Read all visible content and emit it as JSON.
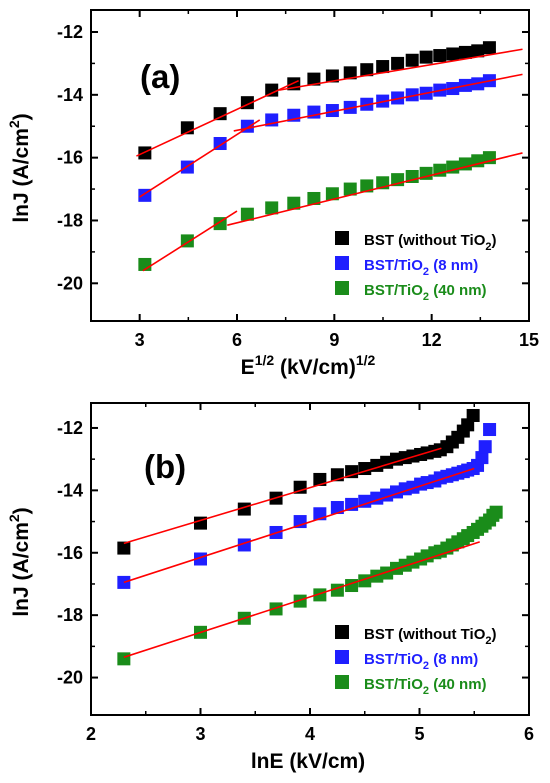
{
  "chart_data": [
    {
      "panel_label": "(a)",
      "type": "scatter",
      "xlabel": "E",
      "xlabel_sup": "1/2",
      "xlabel_rest": " (kV/cm)",
      "xlabel_sup2": "1/2",
      "ylabel": "lnJ (A/cm",
      "ylabel_sup": "2",
      "ylabel_end": ")",
      "xlim": [
        1.5,
        15
      ],
      "ylim": [
        -21.2,
        -11.3
      ],
      "xticks": [
        3,
        6,
        9,
        12,
        15
      ],
      "yticks": [
        -20,
        -18,
        -16,
        -14,
        -12
      ],
      "legend_position": "bottom-right",
      "series": [
        {
          "name": "BST (without TiO2)",
          "legend_parts": [
            "BST (without TiO",
            "2",
            ")"
          ],
          "color": "#000000",
          "x": [
            3.16,
            4.47,
            5.48,
            6.32,
            7.07,
            7.75,
            8.37,
            8.94,
            9.49,
            10.0,
            10.49,
            10.95,
            11.4,
            11.83,
            12.25,
            12.65,
            13.04,
            13.42,
            13.78
          ],
          "y": [
            -15.85,
            -15.05,
            -14.6,
            -14.25,
            -13.85,
            -13.65,
            -13.5,
            -13.4,
            -13.3,
            -13.2,
            -13.1,
            -13.0,
            -12.9,
            -12.8,
            -12.75,
            -12.7,
            -12.65,
            -12.6,
            -12.5
          ],
          "fit_lines": [
            {
              "x": [
                2.9,
                7.9
              ],
              "y": [
                -15.95,
                -13.55
              ]
            },
            {
              "x": [
                7.3,
                14.8
              ],
              "y": [
                -13.85,
                -12.55
              ]
            }
          ]
        },
        {
          "name": "BST/TiO2 (8 nm)",
          "legend_parts": [
            "BST/TiO",
            "2",
            " (8 nm)"
          ],
          "color": "#1f1fff",
          "x": [
            3.16,
            4.47,
            5.48,
            6.32,
            7.07,
            7.75,
            8.37,
            8.94,
            9.49,
            10.0,
            10.49,
            10.95,
            11.4,
            11.83,
            12.25,
            12.65,
            13.04,
            13.42,
            13.78
          ],
          "y": [
            -17.2,
            -16.3,
            -15.55,
            -15.0,
            -14.8,
            -14.65,
            -14.55,
            -14.5,
            -14.4,
            -14.3,
            -14.2,
            -14.1,
            -14.0,
            -13.95,
            -13.85,
            -13.8,
            -13.7,
            -13.65,
            -13.55
          ],
          "fit_lines": [
            {
              "x": [
                3.0,
                6.7
              ],
              "y": [
                -17.25,
                -14.8
              ]
            },
            {
              "x": [
                5.9,
                14.8
              ],
              "y": [
                -15.15,
                -13.35
              ]
            }
          ]
        },
        {
          "name": "BST/TiO2 (40 nm)",
          "legend_parts": [
            "BST/TiO",
            "2",
            " (40 nm)"
          ],
          "color": "#1a8c1a",
          "x": [
            3.16,
            4.47,
            5.48,
            6.32,
            7.07,
            7.75,
            8.37,
            8.94,
            9.49,
            10.0,
            10.49,
            10.95,
            11.4,
            11.83,
            12.25,
            12.65,
            13.04,
            13.42,
            13.78
          ],
          "y": [
            -19.4,
            -18.65,
            -18.1,
            -17.8,
            -17.6,
            -17.45,
            -17.3,
            -17.15,
            -17.0,
            -16.9,
            -16.8,
            -16.7,
            -16.6,
            -16.5,
            -16.4,
            -16.3,
            -16.2,
            -16.1,
            -16.0
          ],
          "fit_lines": [
            {
              "x": [
                3.1,
                6.0
              ],
              "y": [
                -19.6,
                -17.7
              ]
            },
            {
              "x": [
                5.7,
                14.8
              ],
              "y": [
                -18.15,
                -15.85
              ]
            }
          ]
        }
      ]
    },
    {
      "panel_label": "(b)",
      "type": "scatter",
      "xlabel": "lnE (kV/cm)",
      "ylabel": "lnJ (A/cm",
      "ylabel_sup": "2",
      "ylabel_end": ")",
      "xlim": [
        2,
        6
      ],
      "ylim": [
        -21.2,
        -11.2
      ],
      "xticks": [
        2,
        3,
        4,
        5,
        6
      ],
      "yticks": [
        -20,
        -18,
        -16,
        -14,
        -12
      ],
      "legend_position": "bottom-right",
      "series": [
        {
          "name": "BST (without TiO2)",
          "legend_parts": [
            "BST (without TiO",
            "2",
            ")"
          ],
          "color": "#000000",
          "x": [
            2.3,
            3.0,
            3.4,
            3.69,
            3.91,
            4.09,
            4.25,
            4.38,
            4.5,
            4.61,
            4.7,
            4.79,
            4.87,
            4.94,
            5.01,
            5.07,
            5.14,
            5.19,
            5.25,
            5.3,
            5.35,
            5.4,
            5.44,
            5.49
          ],
          "y": [
            -15.85,
            -15.05,
            -14.6,
            -14.25,
            -13.9,
            -13.65,
            -13.5,
            -13.4,
            -13.3,
            -13.2,
            -13.1,
            -13.0,
            -12.95,
            -12.9,
            -12.85,
            -12.8,
            -12.75,
            -12.7,
            -12.6,
            -12.45,
            -12.3,
            -12.1,
            -11.9,
            -11.6
          ],
          "fit_lines": [
            {
              "x": [
                2.3,
                5.2
              ],
              "y": [
                -15.7,
                -12.65
              ]
            }
          ]
        },
        {
          "name": "BST/TiO2 (8 nm)",
          "legend_parts": [
            "BST/TiO",
            "2",
            " (8 nm)"
          ],
          "color": "#1f1fff",
          "x": [
            2.3,
            3.0,
            3.4,
            3.69,
            3.91,
            4.09,
            4.25,
            4.38,
            4.5,
            4.61,
            4.7,
            4.79,
            4.87,
            4.94,
            5.01,
            5.07,
            5.14,
            5.19,
            5.25,
            5.3,
            5.35,
            5.4,
            5.44,
            5.49,
            5.53,
            5.57,
            5.6,
            5.64
          ],
          "y": [
            -16.95,
            -16.2,
            -15.75,
            -15.35,
            -15.0,
            -14.75,
            -14.55,
            -14.45,
            -14.35,
            -14.25,
            -14.15,
            -14.05,
            -13.95,
            -13.9,
            -13.8,
            -13.75,
            -13.7,
            -13.6,
            -13.55,
            -13.5,
            -13.45,
            -13.4,
            -13.35,
            -13.3,
            -13.2,
            -12.95,
            -12.6,
            -12.05
          ],
          "fit_lines": [
            {
              "x": [
                2.3,
                5.5
              ],
              "y": [
                -16.95,
                -13.3
              ]
            }
          ]
        },
        {
          "name": "BST/TiO2 (40 nm)",
          "legend_parts": [
            "BST/TiO",
            "2",
            " (40 nm)"
          ],
          "color": "#1a8c1a",
          "x": [
            2.3,
            3.0,
            3.4,
            3.69,
            3.91,
            4.09,
            4.25,
            4.38,
            4.5,
            4.61,
            4.7,
            4.79,
            4.87,
            4.94,
            5.01,
            5.07,
            5.14,
            5.19,
            5.25,
            5.3,
            5.35,
            5.4,
            5.44,
            5.49,
            5.53,
            5.57,
            5.6,
            5.64,
            5.67,
            5.7
          ],
          "y": [
            -19.4,
            -18.55,
            -18.1,
            -17.8,
            -17.55,
            -17.35,
            -17.2,
            -17.05,
            -16.9,
            -16.75,
            -16.65,
            -16.5,
            -16.4,
            -16.3,
            -16.2,
            -16.1,
            -16.0,
            -15.95,
            -15.85,
            -15.75,
            -15.65,
            -15.55,
            -15.45,
            -15.35,
            -15.25,
            -15.15,
            -15.05,
            -14.95,
            -14.8,
            -14.7
          ],
          "fit_lines": [
            {
              "x": [
                2.3,
                5.55
              ],
              "y": [
                -19.35,
                -15.65
              ]
            }
          ]
        }
      ]
    }
  ]
}
